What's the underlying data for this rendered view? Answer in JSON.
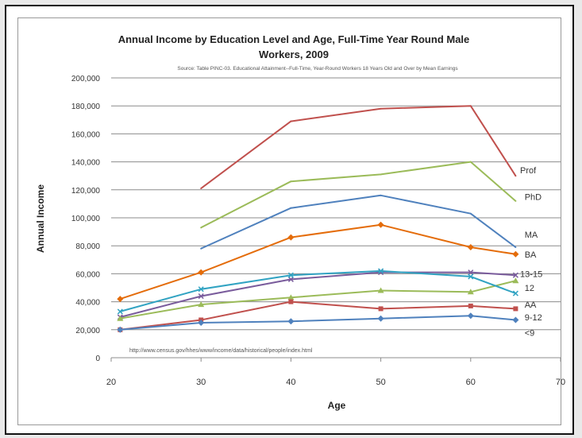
{
  "chart_data": {
    "type": "line",
    "title_line1": "Annual Income by Education Level and Age, Full-Time Year Round Male",
    "title_line2": "Workers, 2009",
    "subtitle": "Source: Table PINC-03. Educational Attainment--Full-Time, Year-Round Workers 18 Years Old and Over by Mean Earnings",
    "source_url": "http://www.census.gov/hhes/www/income/data/historical/people/index.html",
    "xlabel": "Age",
    "ylabel": "Annual Income",
    "xlim": [
      20,
      70
    ],
    "ylim": [
      0,
      200000
    ],
    "x_ticks": [
      20,
      30,
      40,
      50,
      60,
      70
    ],
    "y_ticks": [
      0,
      20000,
      40000,
      60000,
      80000,
      100000,
      120000,
      140000,
      160000,
      180000,
      200000
    ],
    "y_tick_labels": [
      "0",
      "20,000",
      "40,000",
      "60,000",
      "80,000",
      "100,000",
      "120,000",
      "140,000",
      "160,000",
      "180,000",
      "200,000"
    ],
    "grid": "horizontal",
    "legend": "none",
    "series": [
      {
        "name": "Prof",
        "color": "#c0504d",
        "marker": "none",
        "x": [
          30,
          40,
          50,
          60,
          65
        ],
        "values": [
          121000,
          169000,
          178000,
          180000,
          130000
        ]
      },
      {
        "name": "PhD",
        "color": "#9bbb59",
        "marker": "none",
        "x": [
          30,
          40,
          50,
          60,
          65
        ],
        "values": [
          93000,
          126000,
          131000,
          140000,
          112000
        ]
      },
      {
        "name": "MA",
        "color": "#4f81bd",
        "marker": "none",
        "x": [
          30,
          40,
          50,
          60,
          65
        ],
        "values": [
          78000,
          107000,
          116000,
          103000,
          79000
        ]
      },
      {
        "name": "BA",
        "color": "#e46c0a",
        "marker": "diamond",
        "x": [
          21,
          30,
          40,
          50,
          60,
          65
        ],
        "values": [
          42000,
          61000,
          86000,
          95000,
          79000,
          74000
        ]
      },
      {
        "name": "13-15",
        "color": "#7a5c9c",
        "marker": "x",
        "x": [
          21,
          30,
          40,
          50,
          60,
          65
        ],
        "values": [
          29000,
          44000,
          56000,
          61000,
          61000,
          59000
        ]
      },
      {
        "name": "12",
        "color": "#9bbb59",
        "marker": "triangle",
        "x": [
          21,
          30,
          40,
          50,
          60,
          65
        ],
        "values": [
          28000,
          38000,
          43000,
          48000,
          47000,
          55000
        ]
      },
      {
        "name": "AA",
        "color": "#31a3c2",
        "marker": "x",
        "x": [
          21,
          30,
          40,
          50,
          60,
          65
        ],
        "values": [
          33000,
          49000,
          59000,
          62000,
          58000,
          46000
        ]
      },
      {
        "name": "9-12",
        "color": "#c0504d",
        "marker": "square",
        "x": [
          21,
          30,
          40,
          50,
          60,
          65
        ],
        "values": [
          20000,
          27000,
          40000,
          35000,
          37000,
          35000
        ]
      },
      {
        "name": "<9",
        "color": "#4f81bd",
        "marker": "diamond",
        "x": [
          21,
          30,
          40,
          50,
          60,
          65
        ],
        "values": [
          20000,
          25000,
          26000,
          28000,
          30000,
          27000
        ]
      }
    ],
    "series_labels": [
      {
        "text": "Prof",
        "x": 65.5,
        "y": 134000,
        "color": "#333333"
      },
      {
        "text": "PhD",
        "x": 66,
        "y": 115000,
        "color": "#333333"
      },
      {
        "text": "MA",
        "x": 66,
        "y": 88000,
        "color": "#333333"
      },
      {
        "text": "BA",
        "x": 66,
        "y": 74000,
        "color": "#333333"
      },
      {
        "text": "13-15",
        "x": 65.5,
        "y": 60000,
        "color": "#333333"
      },
      {
        "text": "12",
        "x": 66,
        "y": 50000,
        "color": "#333333"
      },
      {
        "text": "AA",
        "x": 66,
        "y": 38000,
        "color": "#333333"
      },
      {
        "text": "9-12",
        "x": 66,
        "y": 29000,
        "color": "#333333"
      },
      {
        "text": "<9",
        "x": 66,
        "y": 18000,
        "color": "#333333"
      }
    ]
  }
}
